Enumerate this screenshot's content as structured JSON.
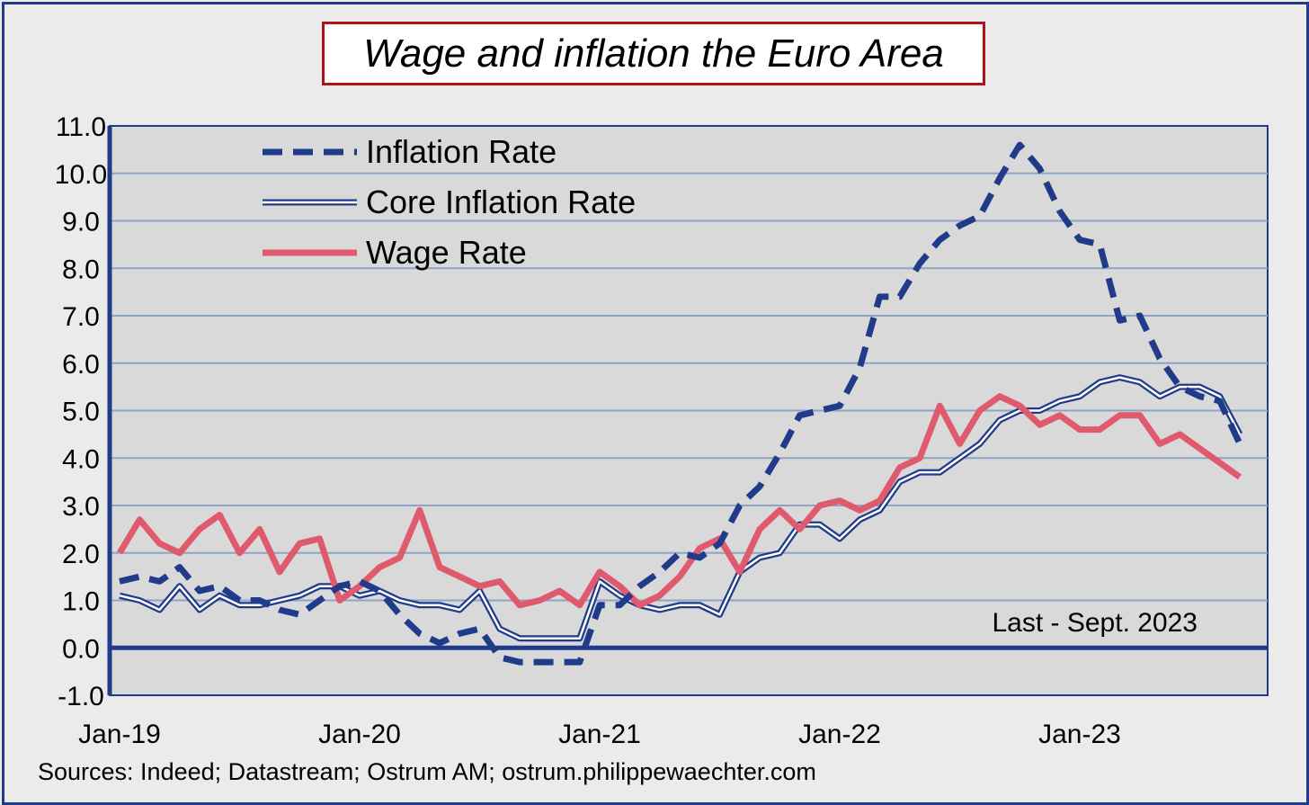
{
  "title": "Wage and inflation the Euro Area",
  "annotation": "Last - Sept. 2023",
  "source": "Sources: Indeed; Datastream; Ostrum AM; ostrum.philippewaechter.com",
  "colors": {
    "background": "#ebebeb",
    "plot_area": "#d9d9d9",
    "gridline": "#8fa3c8",
    "axis": "#1f3b8a",
    "inflation": "#1f3b8a",
    "core": "#1f3b8a",
    "wage": "#e05a6e",
    "title_border": "#b0121b"
  },
  "chart_data": {
    "type": "line",
    "title": "Wage and inflation the Euro Area",
    "xlabel": "",
    "ylabel": "",
    "ylim": [
      -1.0,
      11.0
    ],
    "y_ticks": [
      "11.0",
      "10.0",
      "9.0",
      "8.0",
      "7.0",
      "6.0",
      "5.0",
      "4.0",
      "3.0",
      "2.0",
      "1.0",
      "0.0",
      "-1.0"
    ],
    "x_ticks": [
      "Jan-19",
      "Jan-20",
      "Jan-21",
      "Jan-22",
      "Jan-23"
    ],
    "x_start": "Jan-19",
    "x_end": "Sep-23",
    "grid": true,
    "legend": "top-left",
    "series": [
      {
        "name": "Inflation Rate",
        "style": "dashed",
        "values": [
          1.4,
          1.5,
          1.4,
          1.7,
          1.2,
          1.3,
          1.0,
          1.0,
          0.8,
          0.7,
          1.0,
          1.3,
          1.4,
          1.2,
          0.7,
          0.3,
          0.1,
          0.3,
          0.4,
          -0.2,
          -0.3,
          -0.3,
          -0.3,
          -0.3,
          0.9,
          0.9,
          1.3,
          1.6,
          2.0,
          1.9,
          2.2,
          3.0,
          3.4,
          4.1,
          4.9,
          5.0,
          5.1,
          5.9,
          7.4,
          7.4,
          8.1,
          8.6,
          8.9,
          9.1,
          9.9,
          10.6,
          10.1,
          9.2,
          8.6,
          8.5,
          6.9,
          7.0,
          6.1,
          5.5,
          5.3,
          5.2,
          4.3
        ]
      },
      {
        "name": "Core Inflation Rate",
        "style": "double",
        "values": [
          1.1,
          1.0,
          0.8,
          1.3,
          0.8,
          1.1,
          0.9,
          0.9,
          1.0,
          1.1,
          1.3,
          1.3,
          1.1,
          1.2,
          1.0,
          0.9,
          0.9,
          0.8,
          1.2,
          0.4,
          0.2,
          0.2,
          0.2,
          0.2,
          1.4,
          1.1,
          0.9,
          0.8,
          0.9,
          0.9,
          0.7,
          1.6,
          1.9,
          2.0,
          2.6,
          2.6,
          2.3,
          2.7,
          2.9,
          3.5,
          3.7,
          3.7,
          4.0,
          4.3,
          4.8,
          5.0,
          5.0,
          5.2,
          5.3,
          5.6,
          5.7,
          5.6,
          5.3,
          5.5,
          5.5,
          5.3,
          4.5
        ]
      },
      {
        "name": "Wage Rate",
        "style": "solid",
        "values": [
          2.0,
          2.7,
          2.2,
          2.0,
          2.5,
          2.8,
          2.0,
          2.5,
          1.6,
          2.2,
          2.3,
          1.0,
          1.3,
          1.7,
          1.9,
          2.9,
          1.7,
          1.5,
          1.3,
          1.4,
          0.9,
          1.0,
          1.2,
          0.9,
          1.6,
          1.3,
          0.9,
          1.1,
          1.5,
          2.1,
          2.3,
          1.6,
          2.5,
          2.9,
          2.5,
          3.0,
          3.1,
          2.9,
          3.1,
          3.8,
          4.0,
          5.1,
          4.3,
          5.0,
          5.3,
          5.1,
          4.7,
          4.9,
          4.6,
          4.6,
          4.9,
          4.9,
          4.3,
          4.5,
          4.2,
          3.9,
          3.6
        ]
      }
    ]
  }
}
